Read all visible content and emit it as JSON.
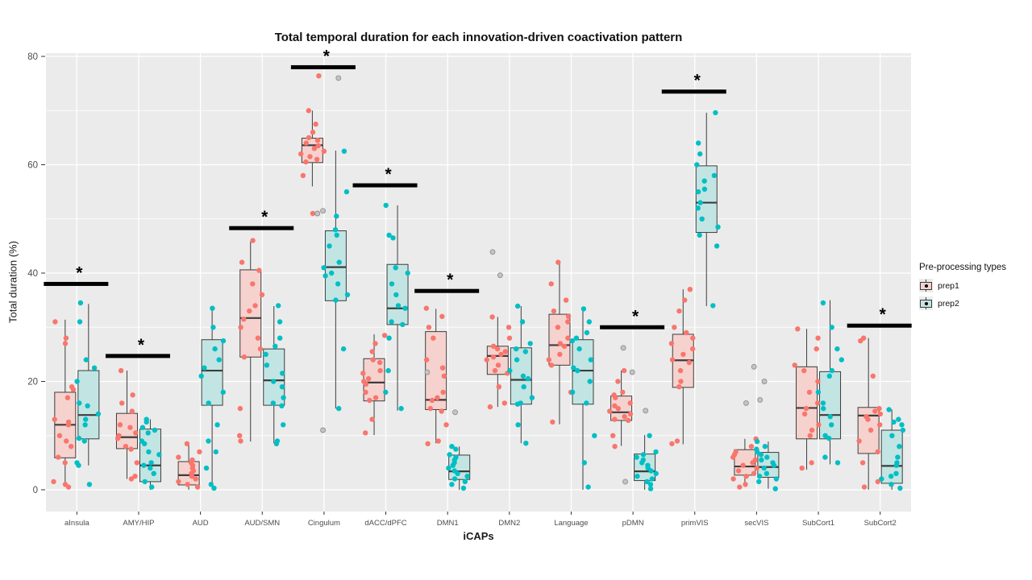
{
  "title": "Total temporal duration for each innovation-driven coactivation pattern",
  "axes": {
    "x_label": "iCAPs",
    "y_label": "Total duration (%)",
    "y_ticks": [
      0,
      20,
      40,
      60,
      80
    ],
    "y_minor": [
      10,
      30,
      50,
      70
    ],
    "y_range": [
      0,
      80
    ]
  },
  "legend": {
    "title": "Pre-processing types",
    "items": [
      {
        "label": "prep1",
        "point_color": "#F8766D",
        "fill": "#F5D2CE"
      },
      {
        "label": "prep2",
        "point_color": "#00BFC4",
        "fill": "#C2E5E3"
      }
    ]
  },
  "colors": {
    "panel_bg": "#EBEBEB",
    "grid": "#FFFFFF",
    "box_stroke": "#3D3D3D",
    "tick_text": "#4D4D4D",
    "tick_mark": "#333333",
    "gray_point_fill": "#C4C4C4",
    "gray_point_stroke": "#8F8F8F",
    "sig_bar": "#000000"
  },
  "chart_data": {
    "type": "boxplot",
    "title": "Total temporal duration for each innovation-driven coactivation pattern",
    "xlabel": "iCAPs",
    "ylabel": "Total duration (%)",
    "ylim": [
      0,
      80
    ],
    "grid": true,
    "legend_position": "right",
    "categories": [
      "aInsula",
      "AMY/HIP",
      "AUD",
      "AUD/SMN",
      "Cingulum",
      "dACC/dPFC",
      "DMN1",
      "DMN2",
      "Language",
      "pDMN",
      "primVIS",
      "secVIS",
      "SubCort1",
      "SubCort2"
    ],
    "series": [
      {
        "name": "prep1",
        "boxes": [
          [
            0.7,
            5.9,
            12.0,
            18.0,
            31.4
          ],
          [
            2.0,
            7.6,
            9.7,
            14.1,
            22.0
          ],
          [
            0.0,
            0.9,
            2.7,
            5.2,
            8.3
          ],
          [
            8.9,
            24.5,
            31.7,
            40.6,
            45.8
          ],
          [
            56.0,
            60.4,
            63.6,
            64.9,
            70.0
          ],
          [
            10.1,
            16.4,
            19.8,
            24.2,
            28.7
          ],
          [
            8.6,
            14.8,
            16.6,
            29.2,
            33.4
          ],
          [
            15.3,
            21.3,
            24.7,
            26.5,
            31.9
          ],
          [
            12.1,
            23.0,
            26.7,
            32.4,
            42.1
          ],
          [
            8.1,
            12.8,
            14.3,
            17.3,
            22.0
          ],
          [
            8.4,
            18.9,
            23.9,
            28.7,
            37.0
          ],
          [
            0.9,
            2.7,
            4.3,
            7.4,
            9.4
          ],
          [
            3.7,
            9.4,
            15.1,
            22.7,
            29.7
          ],
          [
            0.0,
            6.7,
            13.7,
            15.2,
            28.0
          ]
        ],
        "points": [
          [
            31,
            28,
            27,
            19,
            18.5,
            17,
            13,
            12.5,
            12,
            10,
            9,
            8,
            6,
            5,
            1.5,
            1,
            0.5
          ],
          [
            22,
            17.5,
            16,
            14.5,
            12,
            11.5,
            10.5,
            10,
            9.5,
            8,
            7.5,
            5,
            2.5,
            2
          ],
          [
            8.5,
            7,
            6,
            5.5,
            5,
            4.5,
            4,
            3.5,
            3,
            2.5,
            2,
            1.5,
            1,
            0.5
          ],
          [
            46,
            42,
            40.5,
            38,
            36,
            34,
            33,
            31.5,
            30,
            28,
            26,
            24.5,
            15,
            10,
            9
          ],
          [
            76.4,
            70,
            67.5,
            66,
            65,
            64.5,
            64,
            63.5,
            63,
            62.5,
            62,
            61.5,
            61,
            60.5,
            58,
            51
          ],
          [
            28.5,
            27,
            25.5,
            24,
            23.5,
            22,
            21.5,
            20.5,
            20,
            19.5,
            18,
            17,
            16.5,
            13,
            10.5
          ],
          [
            33.5,
            32,
            30,
            28,
            24,
            22.5,
            21,
            18,
            17,
            16.5,
            15,
            14.5,
            12,
            9,
            8.5
          ],
          [
            31.9,
            30,
            28,
            26.5,
            26,
            25.5,
            25,
            24.5,
            24,
            23,
            22,
            21.5,
            19,
            16,
            15.3
          ],
          [
            42,
            38,
            35,
            33,
            32,
            31,
            30,
            28,
            27,
            26.5,
            25,
            24,
            23,
            18,
            12.5
          ],
          [
            22,
            20,
            18,
            17.5,
            17,
            16,
            15.5,
            15,
            14.5,
            14,
            13.5,
            13,
            12.8,
            10,
            8
          ],
          [
            37,
            35,
            33,
            30,
            29,
            28,
            27,
            26,
            25,
            24,
            23.5,
            22,
            20,
            19,
            9,
            8.5
          ],
          [
            9.4,
            8,
            7,
            6.5,
            6,
            5.5,
            5,
            4.5,
            4,
            3.5,
            3,
            2.5,
            2,
            1,
            0.5
          ],
          [
            29.7,
            28,
            26,
            23,
            22,
            20,
            18,
            16,
            15,
            14,
            12,
            11,
            10,
            5,
            4
          ],
          [
            28,
            27.5,
            21,
            15,
            14.5,
            14,
            13.5,
            13,
            12,
            11,
            9,
            7,
            5,
            1.5,
            0.5
          ]
        ]
      },
      {
        "name": "prep2",
        "boxes": [
          [
            4.5,
            9.4,
            13.8,
            22.0,
            34.3
          ],
          [
            0.0,
            1.5,
            4.5,
            11.2,
            13.0
          ],
          [
            0.0,
            15.6,
            22.0,
            27.7,
            33.4
          ],
          [
            8.6,
            15.6,
            20.2,
            26.0,
            33.9
          ],
          [
            15.0,
            34.9,
            41.1,
            47.8,
            62.6
          ],
          [
            14.6,
            30.5,
            33.5,
            41.6,
            52.5
          ],
          [
            0.0,
            1.9,
            3.4,
            6.4,
            8.0
          ],
          [
            8.6,
            15.8,
            20.3,
            26.2,
            33.9
          ],
          [
            0.0,
            15.8,
            22.0,
            27.7,
            33.4
          ],
          [
            0.0,
            1.7,
            3.4,
            6.6,
            10.1
          ],
          [
            33.9,
            47.5,
            53.0,
            59.8,
            69.6
          ],
          [
            0.2,
            2.3,
            4.2,
            6.9,
            8.9
          ],
          [
            4.7,
            9.4,
            13.8,
            21.8,
            35.0
          ],
          [
            0.0,
            1.2,
            4.4,
            11.0,
            14.8
          ]
        ],
        "points": [
          [
            34.5,
            31,
            24,
            22.5,
            20,
            16,
            15.5,
            14,
            13,
            12,
            9.5,
            9,
            5,
            4.5,
            1
          ],
          [
            13,
            12.5,
            11.5,
            11,
            10.5,
            9,
            8.5,
            7,
            6.5,
            5,
            4.5,
            4,
            3,
            1.5,
            0.5
          ],
          [
            33.5,
            30,
            27.5,
            26,
            24,
            22.5,
            21,
            18,
            16,
            12,
            9,
            7,
            4,
            1,
            0.3
          ],
          [
            34,
            31,
            28,
            26.5,
            25,
            23,
            21.5,
            20,
            19,
            17,
            16,
            15.5,
            12,
            9,
            8.5
          ],
          [
            62.5,
            55,
            50.5,
            48,
            47,
            45,
            42,
            41,
            40,
            39.5,
            38,
            36,
            35,
            26,
            15
          ],
          [
            52.5,
            47,
            46.5,
            41,
            40,
            38,
            36,
            34,
            33.5,
            31,
            30.5,
            28,
            22,
            18,
            15
          ],
          [
            8,
            7.5,
            6.5,
            6,
            5.5,
            5,
            4.5,
            4,
            3.5,
            3,
            2.5,
            2,
            1.5,
            1,
            0.3
          ],
          [
            33.9,
            31,
            27,
            26,
            25.5,
            24,
            22,
            21,
            20.5,
            19,
            17,
            16,
            15.8,
            12,
            8.6
          ],
          [
            33.4,
            31,
            29,
            28,
            27.5,
            26,
            24,
            22.5,
            22,
            20,
            18,
            16,
            10,
            5,
            0.5
          ],
          [
            10,
            7,
            6.5,
            6,
            5.5,
            5,
            4.5,
            4,
            3.5,
            3,
            2.5,
            2,
            1.5,
            1,
            0.2
          ],
          [
            69.6,
            64,
            62,
            60,
            58,
            57,
            55.5,
            55,
            53,
            52,
            50,
            48.5,
            47,
            45,
            34
          ],
          [
            8.9,
            8,
            7.5,
            7,
            6.5,
            6,
            5.5,
            5,
            4.5,
            4,
            3,
            2.5,
            2,
            1.5,
            0.2
          ],
          [
            34.5,
            30,
            26,
            24,
            22,
            21,
            18,
            16,
            15,
            13.5,
            12,
            10,
            9.5,
            6,
            5
          ],
          [
            14.8,
            13,
            12.5,
            12,
            11,
            10,
            8,
            6,
            5,
            4.5,
            3,
            2.5,
            2,
            1,
            0.3
          ]
        ]
      }
    ],
    "gray_points": [
      [],
      [],
      [],
      [],
      [
        76,
        51.5,
        51,
        11
      ],
      [],
      [
        21.7,
        14.3
      ],
      [
        43.9,
        39.6
      ],
      [],
      [
        26.2,
        21.7,
        14.6,
        1.5
      ],
      [],
      [
        22.7,
        20,
        16.6,
        16
      ],
      [],
      []
    ],
    "significance": [
      {
        "category": "aInsula",
        "y": 38.0,
        "marker": "*"
      },
      {
        "category": "AMY/HIP",
        "y": 24.7,
        "marker": "*"
      },
      {
        "category": "AUD/SMN",
        "y": 48.3,
        "marker": "*"
      },
      {
        "category": "Cingulum",
        "y": 78.0,
        "marker": "*"
      },
      {
        "category": "dACC/dPFC",
        "y": 56.2,
        "marker": "*"
      },
      {
        "category": "DMN1",
        "y": 36.7,
        "marker": "*"
      },
      {
        "category": "pDMN",
        "y": 30.0,
        "marker": "*"
      },
      {
        "category": "primVIS",
        "y": 73.5,
        "marker": "*"
      },
      {
        "category": "SubCort2",
        "y": 30.3,
        "marker": "*"
      }
    ]
  }
}
